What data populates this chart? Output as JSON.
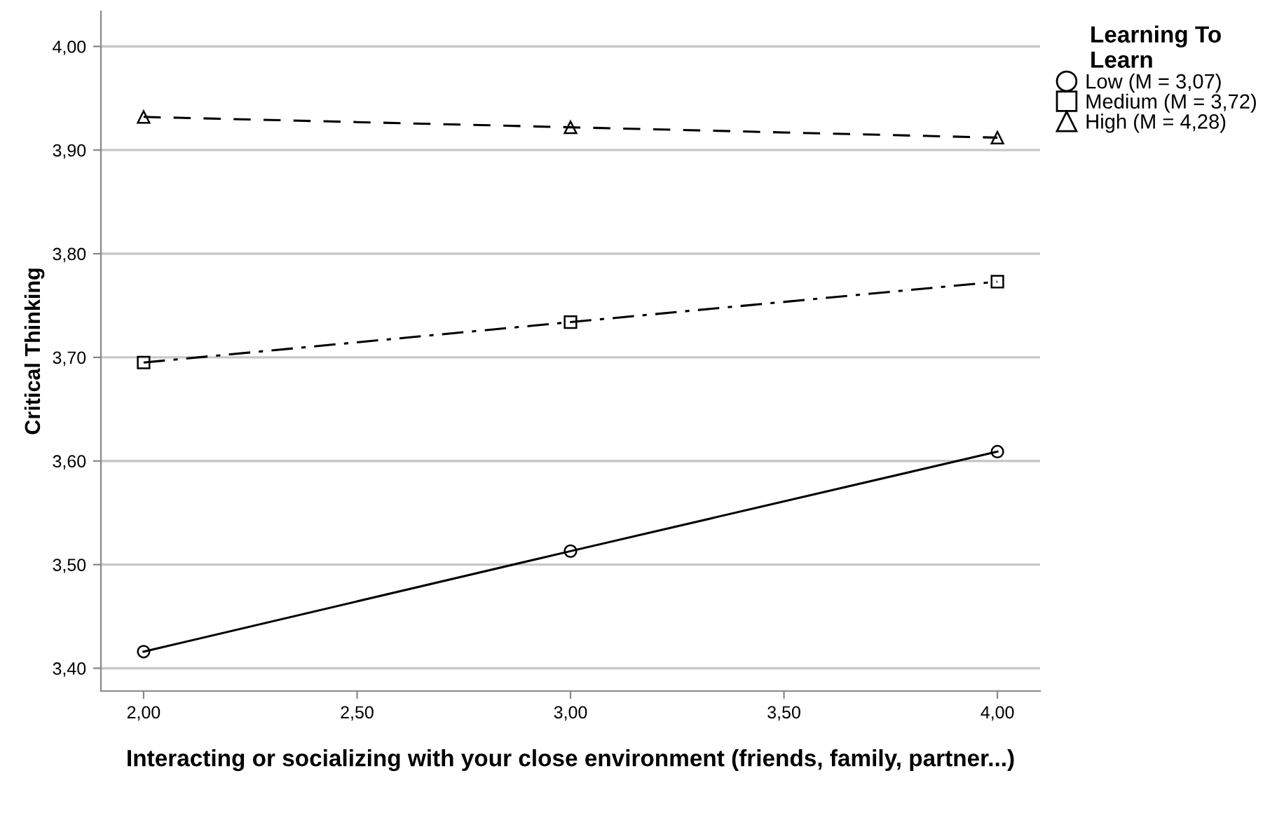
{
  "chart_data": {
    "type": "line",
    "xlabel": "Interacting or socializing with your close environment (friends, family, partner...)",
    "ylabel": "Critical Thinking",
    "legend_title": "Learning To\nLearn",
    "x": [
      2,
      3,
      4
    ],
    "xlim": [
      1.9,
      4.1
    ],
    "xticks": [
      {
        "value": 2,
        "label": "2,00"
      },
      {
        "value": 2.5,
        "label": "2,50"
      },
      {
        "value": 3,
        "label": "3,00"
      },
      {
        "value": 3.5,
        "label": "3,50"
      },
      {
        "value": 4,
        "label": "4,00"
      }
    ],
    "ylim": [
      3.378,
      4.034
    ],
    "yticks": [
      {
        "value": 3.4,
        "label": "3,40"
      },
      {
        "value": 3.5,
        "label": "3,50"
      },
      {
        "value": 3.6,
        "label": "3,60"
      },
      {
        "value": 3.7,
        "label": "3,70"
      },
      {
        "value": 3.8,
        "label": "3,80"
      },
      {
        "value": 3.9,
        "label": "3,90"
      },
      {
        "value": 4.0,
        "label": "4,00"
      }
    ],
    "grid": "y",
    "legend": "top right",
    "series": [
      {
        "name": "Low (M = 3,07)",
        "color": "#000000",
        "marker": "circle",
        "line_style": "solid",
        "values": [
          3.416,
          3.513,
          3.609
        ]
      },
      {
        "name": "Medium (M = 3,72)",
        "color": "#000000",
        "marker": "square",
        "line_style": "dashdot",
        "values": [
          3.695,
          3.734,
          3.773
        ]
      },
      {
        "name": "High (M = 4,28)",
        "color": "#000000",
        "marker": "triangle",
        "line_style": "dashed",
        "values": [
          3.932,
          3.922,
          3.912
        ]
      }
    ]
  }
}
